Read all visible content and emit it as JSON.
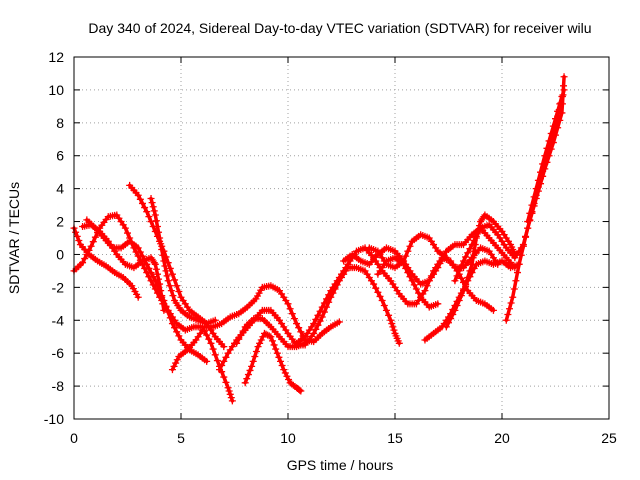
{
  "chart_data": {
    "type": "scatter",
    "title": "Day 340 of 2024, Sidereal Day-to-day VTEC variation (SDTVAR) for receiver wilu",
    "xlabel": "GPS time / hours",
    "ylabel": "SDTVAR / TECUs",
    "xlim": [
      0,
      25
    ],
    "ylim": [
      -10,
      12
    ],
    "xticks": [
      0,
      5,
      10,
      15,
      20,
      25
    ],
    "yticks": [
      -10,
      -8,
      -6,
      -4,
      -2,
      0,
      2,
      4,
      6,
      8,
      10,
      12
    ],
    "grid": true,
    "marker": "plus",
    "color": "#ff0000",
    "series": [
      {
        "points": [
          [
            0.0,
            -1.0
          ],
          [
            0.4,
            -0.5
          ],
          [
            0.8,
            0.5
          ],
          [
            1.2,
            1.6
          ],
          [
            1.6,
            2.3
          ],
          [
            2.0,
            2.4
          ],
          [
            2.4,
            1.6
          ],
          [
            2.8,
            0.4
          ],
          [
            3.2,
            -0.6
          ],
          [
            3.6,
            -1.6
          ],
          [
            4.0,
            -2.6
          ],
          [
            4.4,
            -3.4
          ],
          [
            4.8,
            -4.2
          ],
          [
            5.2,
            -4.6
          ],
          [
            5.6,
            -4.4
          ],
          [
            6.0,
            -4.4
          ],
          [
            6.4,
            -5.4
          ],
          [
            6.8,
            -6.8
          ],
          [
            7.2,
            -8.1
          ],
          [
            7.4,
            -8.9
          ]
        ]
      },
      {
        "points": [
          [
            0.0,
            1.6
          ],
          [
            0.3,
            0.6
          ],
          [
            0.7,
            0.0
          ],
          [
            1.1,
            -0.4
          ],
          [
            1.5,
            -0.7
          ],
          [
            1.9,
            -1.1
          ],
          [
            2.3,
            -1.4
          ],
          [
            2.7,
            -1.9
          ],
          [
            3.0,
            -2.6
          ]
        ]
      },
      {
        "points": [
          [
            0.6,
            2.1
          ],
          [
            1.0,
            1.6
          ],
          [
            1.4,
            1.0
          ],
          [
            1.8,
            0.4
          ],
          [
            2.2,
            0.4
          ],
          [
            2.6,
            0.8
          ],
          [
            3.0,
            0.4
          ],
          [
            3.4,
            -0.6
          ],
          [
            3.8,
            -1.6
          ],
          [
            4.2,
            -2.8
          ],
          [
            4.6,
            -4.2
          ],
          [
            5.0,
            -5.2
          ],
          [
            5.4,
            -5.8
          ],
          [
            5.8,
            -6.1
          ],
          [
            6.2,
            -6.5
          ]
        ]
      },
      {
        "points": [
          [
            0.4,
            1.7
          ],
          [
            0.8,
            1.8
          ],
          [
            1.2,
            1.4
          ],
          [
            1.6,
            0.8
          ],
          [
            2.0,
            0.0
          ],
          [
            2.4,
            -0.6
          ],
          [
            2.8,
            -0.8
          ],
          [
            3.2,
            -0.4
          ],
          [
            3.6,
            -0.2
          ],
          [
            3.8,
            -0.6
          ],
          [
            4.0,
            -1.8
          ],
          [
            4.2,
            -3.4
          ]
        ]
      },
      {
        "points": [
          [
            2.6,
            4.2
          ],
          [
            3.0,
            3.6
          ],
          [
            3.4,
            2.6
          ],
          [
            3.8,
            1.4
          ],
          [
            4.2,
            0.2
          ],
          [
            4.6,
            -1.2
          ],
          [
            5.0,
            -2.6
          ],
          [
            5.4,
            -3.4
          ],
          [
            5.8,
            -3.8
          ],
          [
            6.2,
            -4.2
          ],
          [
            6.6,
            -5.0
          ],
          [
            7.0,
            -5.6
          ]
        ]
      },
      {
        "points": [
          [
            3.6,
            3.4
          ],
          [
            3.8,
            2.4
          ],
          [
            4.0,
            1.0
          ],
          [
            4.2,
            -0.4
          ],
          [
            4.4,
            -1.6
          ],
          [
            4.7,
            -2.8
          ],
          [
            5.0,
            -3.4
          ],
          [
            5.4,
            -3.8
          ],
          [
            5.8,
            -4.0
          ],
          [
            6.2,
            -4.2
          ],
          [
            6.6,
            -4.0
          ]
        ]
      },
      {
        "points": [
          [
            4.6,
            -7.0
          ],
          [
            4.9,
            -6.2
          ],
          [
            5.3,
            -5.8
          ],
          [
            5.7,
            -5.2
          ],
          [
            6.1,
            -4.4
          ],
          [
            6.5,
            -4.4
          ],
          [
            6.9,
            -4.2
          ],
          [
            7.3,
            -3.8
          ],
          [
            7.7,
            -3.6
          ],
          [
            8.1,
            -3.2
          ],
          [
            8.5,
            -2.7
          ],
          [
            8.8,
            -2.0
          ],
          [
            9.2,
            -1.9
          ],
          [
            9.6,
            -2.2
          ],
          [
            10.0,
            -3.0
          ],
          [
            10.4,
            -4.2
          ],
          [
            10.8,
            -5.2
          ],
          [
            11.2,
            -5.3
          ],
          [
            11.6,
            -4.8
          ],
          [
            12.0,
            -4.4
          ],
          [
            12.4,
            -4.1
          ]
        ]
      },
      {
        "points": [
          [
            6.8,
            -7.0
          ],
          [
            7.2,
            -6.0
          ],
          [
            7.6,
            -5.2
          ],
          [
            8.0,
            -4.6
          ],
          [
            8.4,
            -4.0
          ],
          [
            8.8,
            -3.4
          ],
          [
            9.2,
            -3.4
          ],
          [
            9.6,
            -4.0
          ],
          [
            10.0,
            -4.8
          ],
          [
            10.4,
            -5.5
          ],
          [
            10.8,
            -5.5
          ],
          [
            11.2,
            -4.8
          ],
          [
            11.6,
            -3.8
          ],
          [
            12.0,
            -2.6
          ],
          [
            12.4,
            -1.6
          ],
          [
            12.8,
            -0.8
          ],
          [
            13.2,
            -0.8
          ],
          [
            13.6,
            -1.0
          ],
          [
            14.0,
            -1.8
          ],
          [
            14.4,
            -2.8
          ],
          [
            14.8,
            -4.0
          ],
          [
            15.0,
            -4.8
          ],
          [
            15.2,
            -5.4
          ]
        ]
      },
      {
        "points": [
          [
            7.6,
            -5.4
          ],
          [
            8.0,
            -4.4
          ],
          [
            8.4,
            -3.9
          ],
          [
            8.8,
            -3.9
          ],
          [
            9.2,
            -4.4
          ],
          [
            9.6,
            -5.0
          ],
          [
            10.0,
            -5.6
          ],
          [
            10.4,
            -5.6
          ],
          [
            10.8,
            -5.4
          ]
        ]
      },
      {
        "points": [
          [
            8.0,
            -7.8
          ],
          [
            8.3,
            -6.8
          ],
          [
            8.6,
            -5.6
          ],
          [
            8.9,
            -4.8
          ],
          [
            9.2,
            -5.0
          ],
          [
            9.5,
            -6.0
          ],
          [
            9.8,
            -7.0
          ],
          [
            10.1,
            -7.8
          ],
          [
            10.4,
            -8.1
          ],
          [
            10.6,
            -8.3
          ]
        ]
      },
      {
        "points": [
          [
            10.4,
            -5.4
          ],
          [
            10.8,
            -5.0
          ],
          [
            11.2,
            -4.2
          ],
          [
            11.6,
            -3.2
          ],
          [
            12.0,
            -2.2
          ],
          [
            12.4,
            -1.4
          ],
          [
            12.8,
            -0.6
          ],
          [
            13.2,
            0.2
          ],
          [
            13.6,
            0.4
          ],
          [
            14.0,
            -0.2
          ],
          [
            14.4,
            -1.0
          ],
          [
            14.8,
            -1.6
          ],
          [
            15.2,
            -2.4
          ],
          [
            15.6,
            -3.0
          ],
          [
            16.0,
            -3.0
          ],
          [
            16.4,
            -2.2
          ],
          [
            16.8,
            -1.0
          ],
          [
            17.2,
            -0.2
          ],
          [
            17.6,
            -0.4
          ],
          [
            18.0,
            -1.2
          ],
          [
            18.4,
            -2.2
          ],
          [
            18.8,
            -2.8
          ],
          [
            19.2,
            -3.0
          ],
          [
            19.6,
            -3.4
          ]
        ]
      },
      {
        "points": [
          [
            12.6,
            -0.4
          ],
          [
            13.0,
            0.0
          ],
          [
            13.4,
            -0.4
          ],
          [
            13.8,
            -0.6
          ],
          [
            14.2,
            0.0
          ],
          [
            14.6,
            0.4
          ],
          [
            15.0,
            0.2
          ],
          [
            15.4,
            -0.4
          ],
          [
            15.8,
            -1.2
          ],
          [
            16.2,
            -1.8
          ],
          [
            16.6,
            -1.6
          ],
          [
            17.0,
            -0.8
          ],
          [
            17.4,
            0.2
          ],
          [
            17.8,
            0.6
          ],
          [
            18.2,
            0.6
          ],
          [
            18.6,
            1.2
          ],
          [
            19.0,
            1.6
          ],
          [
            19.4,
            1.0
          ],
          [
            19.8,
            0.4
          ],
          [
            20.2,
            -0.2
          ],
          [
            20.6,
            -0.8
          ]
        ]
      },
      {
        "points": [
          [
            13.8,
            0.4
          ],
          [
            14.2,
            0.2
          ],
          [
            14.6,
            -0.6
          ],
          [
            15.0,
            -0.8
          ],
          [
            15.4,
            -0.4
          ],
          [
            15.8,
            0.8
          ],
          [
            16.2,
            1.2
          ],
          [
            16.6,
            1.0
          ],
          [
            17.0,
            0.2
          ],
          [
            17.4,
            -0.2
          ],
          [
            17.8,
            -0.8
          ],
          [
            18.2,
            -0.8
          ],
          [
            18.6,
            -0.2
          ],
          [
            19.0,
            0.4
          ],
          [
            19.4,
            0.2
          ],
          [
            19.8,
            -0.6
          ]
        ]
      },
      {
        "points": [
          [
            14.2,
            -1.2
          ],
          [
            14.6,
            -0.4
          ],
          [
            15.0,
            -0.2
          ],
          [
            15.4,
            -0.6
          ],
          [
            15.8,
            -1.6
          ],
          [
            16.2,
            -2.6
          ],
          [
            16.6,
            -3.2
          ],
          [
            17.0,
            -3.0
          ]
        ]
      },
      {
        "points": [
          [
            16.4,
            -5.2
          ],
          [
            16.8,
            -4.8
          ],
          [
            17.2,
            -4.4
          ],
          [
            17.6,
            -3.6
          ],
          [
            18.0,
            -2.6
          ],
          [
            18.4,
            -1.6
          ],
          [
            18.8,
            -0.6
          ],
          [
            19.2,
            -0.4
          ],
          [
            19.6,
            -0.6
          ],
          [
            20.0,
            -0.4
          ],
          [
            20.4,
            -0.8
          ],
          [
            20.8,
            -0.6
          ]
        ]
      },
      {
        "points": [
          [
            17.4,
            -4.4
          ],
          [
            17.8,
            -3.4
          ],
          [
            18.2,
            -2.2
          ],
          [
            18.6,
            -0.6
          ],
          [
            18.8,
            1.0
          ],
          [
            19.0,
            2.0
          ],
          [
            19.2,
            2.4
          ],
          [
            19.6,
            2.0
          ],
          [
            20.0,
            1.4
          ],
          [
            20.4,
            0.6
          ],
          [
            20.6,
            0.0
          ]
        ]
      },
      {
        "points": [
          [
            17.8,
            -1.6
          ],
          [
            18.2,
            -0.4
          ],
          [
            18.6,
            0.6
          ],
          [
            19.0,
            1.6
          ],
          [
            19.4,
            1.8
          ],
          [
            19.8,
            1.2
          ],
          [
            20.2,
            0.4
          ],
          [
            20.6,
            -0.2
          ],
          [
            21.0,
            0.6
          ],
          [
            21.4,
            2.6
          ],
          [
            21.8,
            4.6
          ],
          [
            22.2,
            6.4
          ],
          [
            22.6,
            8.4
          ],
          [
            22.9,
            10.0
          ]
        ]
      },
      {
        "points": [
          [
            20.2,
            -4.0
          ],
          [
            20.5,
            -2.6
          ],
          [
            20.8,
            -0.6
          ],
          [
            21.2,
            1.6
          ],
          [
            21.6,
            3.4
          ],
          [
            22.0,
            5.2
          ],
          [
            22.4,
            6.8
          ],
          [
            22.8,
            8.6
          ],
          [
            22.9,
            10.8
          ]
        ]
      },
      {
        "points": [
          [
            21.2,
            2.0
          ],
          [
            21.6,
            4.0
          ],
          [
            22.0,
            6.0
          ],
          [
            22.4,
            7.8
          ],
          [
            22.8,
            9.6
          ]
        ]
      }
    ]
  }
}
